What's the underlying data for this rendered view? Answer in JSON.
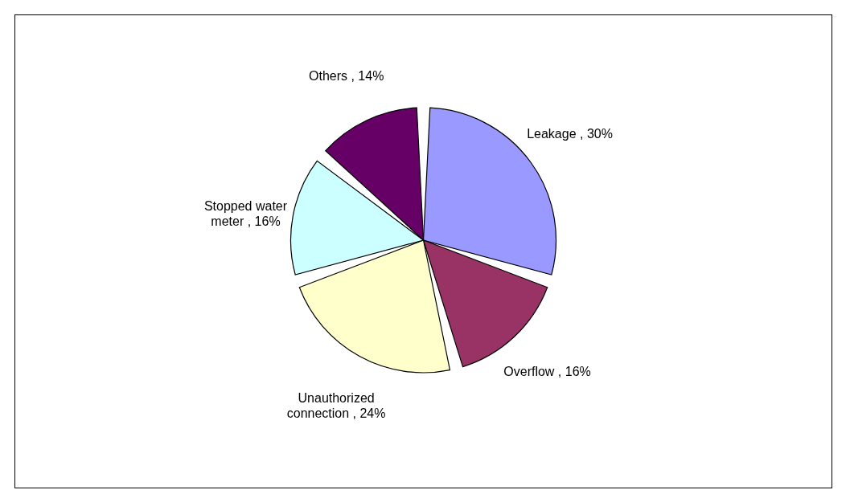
{
  "chart_data": {
    "type": "pie",
    "categories": [
      "Leakage",
      "Overflow",
      "Unauthorized connection",
      "Stopped water meter",
      "Others"
    ],
    "values": [
      30,
      16,
      24,
      16,
      14
    ],
    "colors": [
      "#9999ff",
      "#993366",
      "#ffffcc",
      "#ccffff",
      "#660066"
    ],
    "value_labels": [
      "30%",
      "16%",
      "24%",
      "16%",
      "14%"
    ]
  }
}
